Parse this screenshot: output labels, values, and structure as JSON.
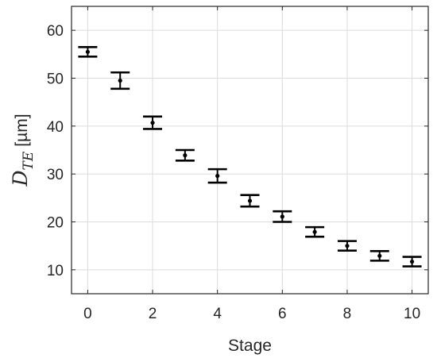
{
  "chart_data": {
    "type": "scatter",
    "xlabel": "Stage",
    "ylabel": {
      "symbol": "D",
      "subscript": "TE",
      "unit": "[µm]"
    },
    "xlim": [
      -0.5,
      10.5
    ],
    "ylim": [
      5,
      65
    ],
    "xticks": [
      0,
      2,
      4,
      6,
      8,
      10
    ],
    "yticks": [
      10,
      20,
      30,
      40,
      50,
      60
    ],
    "grid": true,
    "series": [
      {
        "x": [
          0,
          1,
          2,
          3,
          4,
          5,
          6,
          7,
          8,
          9,
          10
        ],
        "y": [
          55.5,
          49.5,
          40.7,
          33.9,
          29.6,
          24.4,
          21.1,
          17.9,
          15.0,
          12.9,
          11.7
        ],
        "err": [
          1.0,
          1.7,
          1.3,
          1.1,
          1.4,
          1.2,
          1.1,
          1.0,
          1.0,
          1.0,
          1.0
        ]
      }
    ],
    "colors": {
      "marker": "#000000",
      "grid": "#dcdcdc",
      "axis": "#262626"
    }
  }
}
